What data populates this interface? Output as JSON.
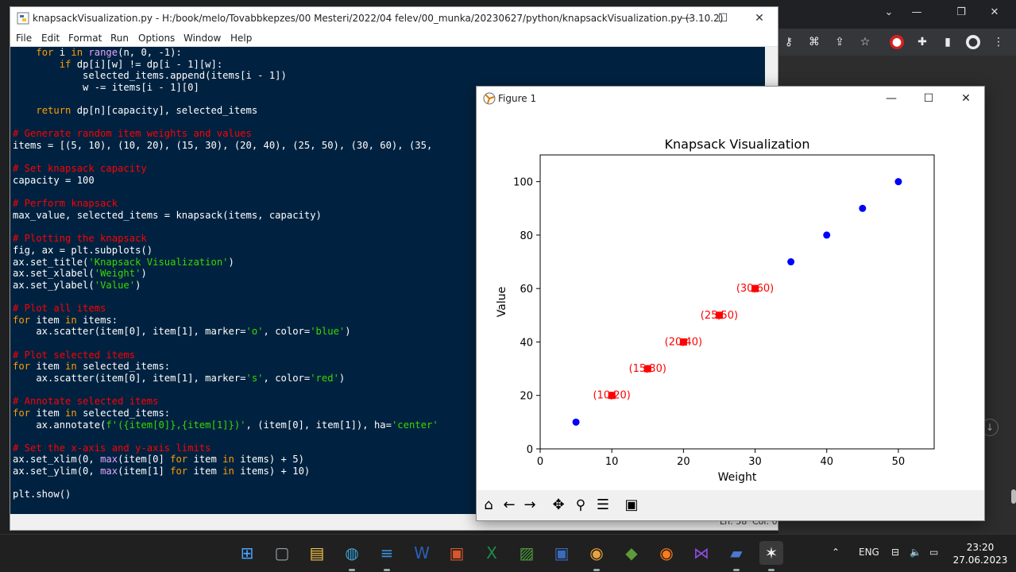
{
  "idle": {
    "title": "knapsackVisualization.py - H:/book/melo/Tovabbkepzes/00 Mesteri/2022/04 felev/00_munka/20230627/python/knapsackVisualization.py (3.10.2)",
    "menu": [
      "File",
      "Edit",
      "Format",
      "Run",
      "Options",
      "Window",
      "Help"
    ],
    "status_line": "Ln: 58",
    "status_col": "Col: 0",
    "code": [
      [
        [
          "    ",
          "df"
        ],
        [
          "for",
          "kw"
        ],
        [
          " i ",
          "df"
        ],
        [
          "in",
          "kw"
        ],
        [
          " ",
          "df"
        ],
        [
          "range",
          "bi"
        ],
        [
          "(n, 0, -1):",
          "df"
        ]
      ],
      [
        [
          "        ",
          "df"
        ],
        [
          "if",
          "kw"
        ],
        [
          " dp[i][w] != dp[i - 1][w]:",
          "df"
        ]
      ],
      [
        [
          "            selected_items.append(items[i - 1])",
          "df"
        ]
      ],
      [
        [
          "            w -= items[i - 1][0]",
          "df"
        ]
      ],
      [
        [
          "",
          "df"
        ]
      ],
      [
        [
          "    ",
          "df"
        ],
        [
          "return",
          "kw"
        ],
        [
          " dp[n][capacity], selected_items",
          "df"
        ]
      ],
      [
        [
          "",
          "df"
        ]
      ],
      [
        [
          "# Generate random item weights and values",
          "cm"
        ]
      ],
      [
        [
          "items = [(5, 10), (10, 20), (15, 30), (20, 40), (25, 50), (30, 60), (35,",
          "df"
        ]
      ],
      [
        [
          "",
          "df"
        ]
      ],
      [
        [
          "# Set knapsack capacity",
          "cm"
        ]
      ],
      [
        [
          "capacity = 100",
          "df"
        ]
      ],
      [
        [
          "",
          "df"
        ]
      ],
      [
        [
          "# Perform knapsack",
          "cm"
        ]
      ],
      [
        [
          "max_value, selected_items = knapsack(items, capacity)",
          "df"
        ]
      ],
      [
        [
          "",
          "df"
        ]
      ],
      [
        [
          "# Plotting the knapsack",
          "cm"
        ]
      ],
      [
        [
          "fig, ax = plt.subplots()",
          "df"
        ]
      ],
      [
        [
          "ax.set_title(",
          "df"
        ],
        [
          "'Knapsack Visualization'",
          "st"
        ],
        [
          ")",
          "df"
        ]
      ],
      [
        [
          "ax.set_xlabel(",
          "df"
        ],
        [
          "'Weight'",
          "st"
        ],
        [
          ")",
          "df"
        ]
      ],
      [
        [
          "ax.set_ylabel(",
          "df"
        ],
        [
          "'Value'",
          "st"
        ],
        [
          ")",
          "df"
        ]
      ],
      [
        [
          "",
          "df"
        ]
      ],
      [
        [
          "# Plot all items",
          "cm"
        ]
      ],
      [
        [
          "for",
          "kw"
        ],
        [
          " item ",
          "df"
        ],
        [
          "in",
          "kw"
        ],
        [
          " items:",
          "df"
        ]
      ],
      [
        [
          "    ax.scatter(item[0], item[1], marker=",
          "df"
        ],
        [
          "'o'",
          "st"
        ],
        [
          ", color=",
          "df"
        ],
        [
          "'blue'",
          "st"
        ],
        [
          ")",
          "df"
        ]
      ],
      [
        [
          "",
          "df"
        ]
      ],
      [
        [
          "# Plot selected items",
          "cm"
        ]
      ],
      [
        [
          "for",
          "kw"
        ],
        [
          " item ",
          "df"
        ],
        [
          "in",
          "kw"
        ],
        [
          " selected_items:",
          "df"
        ]
      ],
      [
        [
          "    ax.scatter(item[0], item[1], marker=",
          "df"
        ],
        [
          "'s'",
          "st"
        ],
        [
          ", color=",
          "df"
        ],
        [
          "'red'",
          "st"
        ],
        [
          ")",
          "df"
        ]
      ],
      [
        [
          "",
          "df"
        ]
      ],
      [
        [
          "# Annotate selected items",
          "cm"
        ]
      ],
      [
        [
          "for",
          "kw"
        ],
        [
          " item ",
          "df"
        ],
        [
          "in",
          "kw"
        ],
        [
          " selected_items:",
          "df"
        ]
      ],
      [
        [
          "    ax.annotate(",
          "df"
        ],
        [
          "f'({item[0]},{item[1]})'",
          "st"
        ],
        [
          ", (item[0], item[1]), ha=",
          "df"
        ],
        [
          "'center'",
          "st"
        ]
      ],
      [
        [
          "",
          "df"
        ]
      ],
      [
        [
          "# Set the x-axis and y-axis limits",
          "cm"
        ]
      ],
      [
        [
          "ax.set_xlim(0, ",
          "df"
        ],
        [
          "max",
          "bi"
        ],
        [
          "(item[0] ",
          "df"
        ],
        [
          "for",
          "kw"
        ],
        [
          " item ",
          "df"
        ],
        [
          "in",
          "kw"
        ],
        [
          " items) + 5)",
          "df"
        ]
      ],
      [
        [
          "ax.set_ylim(0, ",
          "df"
        ],
        [
          "max",
          "bi"
        ],
        [
          "(item[1] ",
          "df"
        ],
        [
          "for",
          "kw"
        ],
        [
          " item ",
          "df"
        ],
        [
          "in",
          "kw"
        ],
        [
          " items) + 10)",
          "df"
        ]
      ],
      [
        [
          "",
          "df"
        ]
      ],
      [
        [
          "plt.show()",
          "df"
        ]
      ]
    ]
  },
  "figure": {
    "title": "Figure 1",
    "nav_icons": [
      "home-icon",
      "back-icon",
      "forward-icon",
      "pan-icon",
      "zoom-icon",
      "configure-icon",
      "save-icon"
    ]
  },
  "chart_data": {
    "type": "scatter",
    "title": "Knapsack Visualization",
    "xlabel": "Weight",
    "ylabel": "Value",
    "xlim": [
      0,
      55
    ],
    "ylim": [
      0,
      110
    ],
    "xticks": [
      0,
      10,
      20,
      30,
      40,
      50
    ],
    "yticks": [
      0,
      20,
      40,
      60,
      80,
      100
    ],
    "series": [
      {
        "marker": "o",
        "color": "#0000ff",
        "points": [
          [
            5,
            10
          ],
          [
            10,
            20
          ],
          [
            15,
            30
          ],
          [
            20,
            40
          ],
          [
            25,
            50
          ],
          [
            30,
            60
          ],
          [
            35,
            70
          ],
          [
            40,
            80
          ],
          [
            45,
            90
          ],
          [
            50,
            100
          ]
        ]
      },
      {
        "marker": "s",
        "color": "#ff0000",
        "points": [
          [
            10,
            20
          ],
          [
            15,
            30
          ],
          [
            20,
            40
          ],
          [
            25,
            50
          ],
          [
            30,
            60
          ]
        ]
      }
    ],
    "annotations": [
      {
        "x": 10,
        "y": 20,
        "text": "(10,20)"
      },
      {
        "x": 15,
        "y": 30,
        "text": "(15,30)"
      },
      {
        "x": 20,
        "y": 40,
        "text": "(20,40)"
      },
      {
        "x": 25,
        "y": 50,
        "text": "(25,50)"
      },
      {
        "x": 30,
        "y": 60,
        "text": "(30,60)"
      }
    ]
  },
  "taskbar": {
    "language": "ENG",
    "time": "23:20",
    "date": "27.06.2023",
    "apps": [
      "windows-start-icon",
      "task-view-icon",
      "file-explorer-icon",
      "paint-icon",
      "notepad-icon",
      "word-icon",
      "app-icon",
      "excel-icon",
      "app-icon",
      "floppy-icon",
      "chrome-icon",
      "app-icon",
      "firefox-icon",
      "visual-studio-icon",
      "python-idle-icon",
      "matplotlib-icon"
    ]
  }
}
